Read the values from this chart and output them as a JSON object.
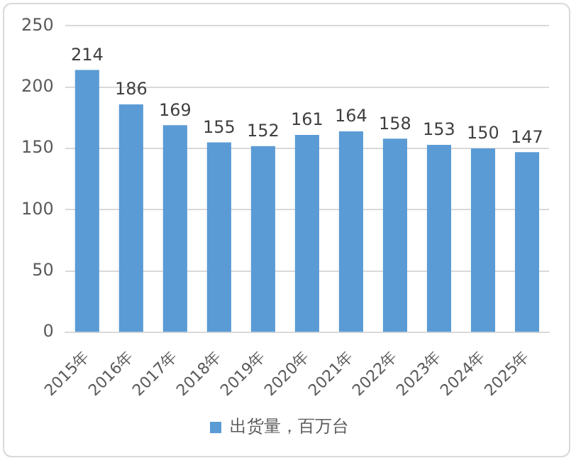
{
  "chart_data": {
    "type": "bar",
    "categories": [
      "2015年",
      "2016年",
      "2017年",
      "2018年",
      "2019年",
      "2020年",
      "2021年",
      "2022年",
      "2023年",
      "2024年",
      "2025年"
    ],
    "series": [
      {
        "name": "出货量，百万台",
        "color": "#5b9bd5",
        "values": [
          214,
          186,
          169,
          155,
          152,
          161,
          164,
          158,
          153,
          150,
          147
        ]
      }
    ],
    "ylim": [
      0,
      250
    ],
    "yticks": [
      0,
      50,
      100,
      150,
      200,
      250
    ],
    "grid": "y",
    "legend": "bottom",
    "data_labels": true
  }
}
